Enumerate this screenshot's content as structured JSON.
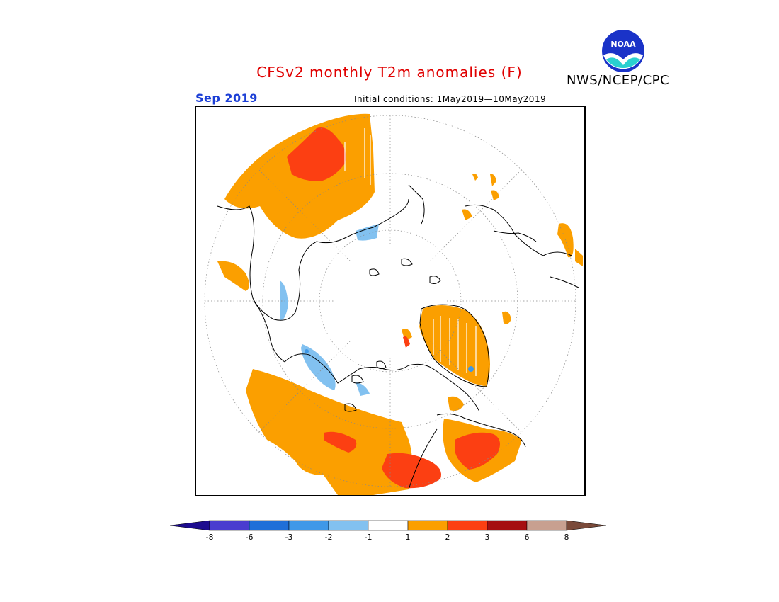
{
  "title": "CFSv2 monthly T2m anomalies (F)",
  "agency": "NWS/NCEP/CPC",
  "logo": {
    "text": "NOAA",
    "icon": "noaa-logo-icon"
  },
  "valid_month": "Sep 2019",
  "initial_conditions": "Initial conditions: 1May2019—10May2019",
  "map": {
    "projection": "north-polar-stereographic",
    "variable": "2m temperature anomaly",
    "units": "F"
  },
  "legend": {
    "labels": [
      "-8",
      "-6",
      "-3",
      "-2",
      "-1",
      "1",
      "2",
      "3",
      "6",
      "8"
    ],
    "colors": {
      "below_minus8": "#1d0c8f",
      "minus8_to_minus6": "#4a3ccf",
      "minus6_to_minus3": "#1f6fd8",
      "minus3_to_minus2": "#3f98e8",
      "minus2_to_minus1": "#82c1f0",
      "minus1_to_1": "#ffffff",
      "1_to_2": "#fb9f00",
      "2_to_3": "#fc3f12",
      "3_to_6": "#a50f10",
      "6_to_8": "#c8a090",
      "above_8": "#7a4a3a"
    }
  }
}
